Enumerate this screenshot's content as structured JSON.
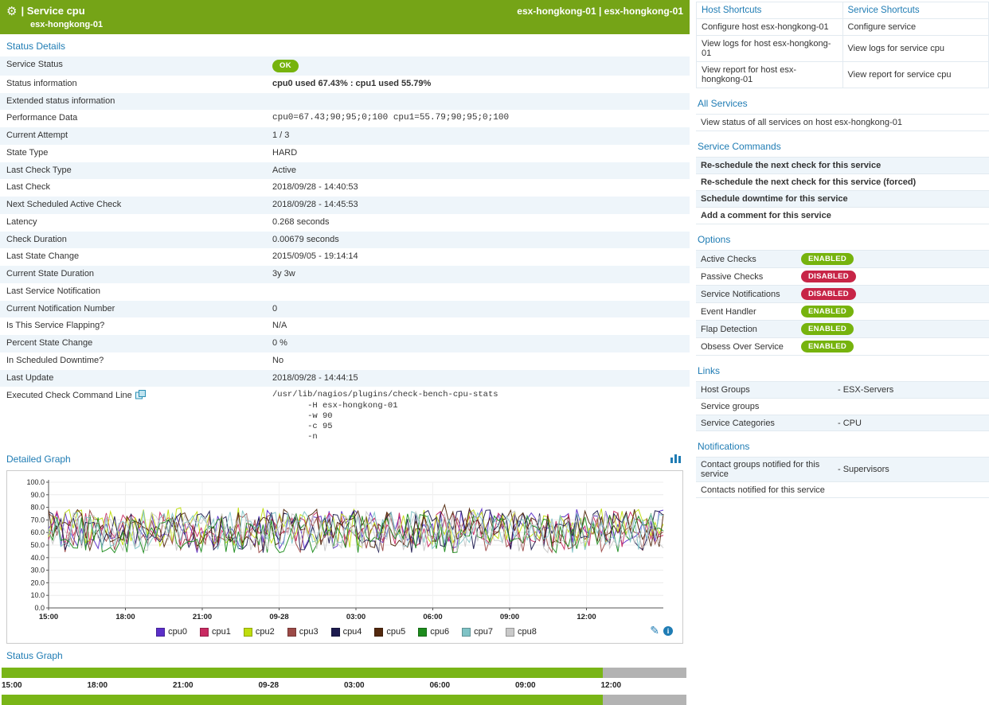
{
  "colors": {
    "header_green": "#75a417",
    "heading_blue": "#1f7cb4",
    "enabled_green": "#76b30d",
    "disabled_red": "#c72547",
    "stripe_blue": "#eef5fa",
    "status_bar_green": "#79b517",
    "status_bar_gray": "#b3b3b3"
  },
  "header": {
    "gear_icon": "gear",
    "title": "| Service cpu",
    "subtitle": "esx-hongkong-01",
    "host_links": "esx-hongkong-01 | esx-hongkong-01"
  },
  "status_details": {
    "heading": "Status Details",
    "rows": [
      {
        "label": "Service Status",
        "value": "OK",
        "type": "badge"
      },
      {
        "label": "Status information",
        "value": "cpu0 used 67.43% : cpu1 used 55.79%",
        "type": "bold"
      },
      {
        "label": "Extended status information",
        "value": "",
        "type": "text"
      },
      {
        "label": "Performance Data",
        "value": "cpu0=67.43;90;95;0;100 cpu1=55.79;90;95;0;100",
        "type": "code"
      },
      {
        "label": "Current Attempt",
        "value": "1 / 3",
        "type": "text"
      },
      {
        "label": "State Type",
        "value": "HARD",
        "type": "text"
      },
      {
        "label": "Last Check Type",
        "value": "Active",
        "type": "text"
      },
      {
        "label": "Last Check",
        "value": "2018/09/28 - 14:40:53",
        "type": "text"
      },
      {
        "label": "Next Scheduled Active Check",
        "value": "2018/09/28 - 14:45:53",
        "type": "text"
      },
      {
        "label": "Latency",
        "value": "0.268 seconds",
        "type": "text"
      },
      {
        "label": "Check Duration",
        "value": "0.00679 seconds",
        "type": "text"
      },
      {
        "label": "Last State Change",
        "value": "2015/09/05 - 19:14:14",
        "type": "text"
      },
      {
        "label": "Current State Duration",
        "value": "3y 3w",
        "type": "text"
      },
      {
        "label": "Last Service Notification",
        "value": "",
        "type": "text"
      },
      {
        "label": "Current Notification Number",
        "value": "0",
        "type": "text"
      },
      {
        "label": "Is This Service Flapping?",
        "value": "N/A",
        "type": "text"
      },
      {
        "label": "Percent State Change",
        "value": "0 %",
        "type": "text"
      },
      {
        "label": "In Scheduled Downtime?",
        "value": "No",
        "type": "text"
      },
      {
        "label": "Last Update",
        "value": "2018/09/28 - 14:44:15",
        "type": "text"
      },
      {
        "label": "Executed Check Command Line",
        "value": "/usr/lib/nagios/plugins/check-bench-cpu-stats\n       -H esx-hongkong-01\n       -w 90\n       -c 95\n       -n",
        "type": "pre",
        "icon": "command-expand-icon"
      }
    ]
  },
  "detailed_graph": {
    "heading": "Detailed Graph"
  },
  "chart_data": {
    "type": "line",
    "title": "Detailed Graph",
    "ylim": [
      0,
      100
    ],
    "yticks": [
      "100.0",
      "90.0",
      "80.0",
      "70.0",
      "60.0",
      "50.0",
      "40.0",
      "30.0",
      "20.0",
      "10.0",
      "0.0"
    ],
    "xticks": [
      "15:00",
      "18:00",
      "21:00",
      "09-28",
      "03:00",
      "06:00",
      "09:00",
      "12:00"
    ],
    "grid": true,
    "legend_position": "bottom",
    "series": [
      {
        "name": "cpu0",
        "color": "#5b2fc9",
        "base": 63
      },
      {
        "name": "cpu1",
        "color": "#c92a62",
        "base": 61
      },
      {
        "name": "cpu2",
        "color": "#bfdd0e",
        "base": 64
      },
      {
        "name": "cpu3",
        "color": "#9c4a47",
        "base": 60
      },
      {
        "name": "cpu4",
        "color": "#1d1b4f",
        "base": 62
      },
      {
        "name": "cpu5",
        "color": "#53290e",
        "base": 63
      },
      {
        "name": "cpu6",
        "color": "#1d8c1d",
        "base": 59
      },
      {
        "name": "cpu7",
        "color": "#7fc3c6",
        "base": 62
      },
      {
        "name": "cpu8",
        "color": "#c9c9c9",
        "base": 61
      }
    ],
    "value_range_approx": [
      45,
      80
    ],
    "points_per_series": 150,
    "noise_amplitude": 32
  },
  "status_graph": {
    "heading": "Status Graph",
    "xticks": [
      "15:00",
      "18:00",
      "21:00",
      "09-28",
      "03:00",
      "06:00",
      "09:00",
      "12:00"
    ],
    "segments": [
      {
        "state": "ok",
        "color": "#79b517",
        "fraction": 0.878
      },
      {
        "state": "no-data",
        "color": "#b3b3b3",
        "fraction": 0.122
      }
    ]
  },
  "shortcuts": {
    "columns": [
      "Host Shortcuts",
      "Service Shortcuts"
    ],
    "rows": [
      [
        "Configure host esx-hongkong-01",
        "Configure service"
      ],
      [
        "View logs for host esx-hongkong-01",
        "View logs for service cpu"
      ],
      [
        "View report for host esx-hongkong-01",
        "View report for service cpu"
      ]
    ]
  },
  "all_services": {
    "heading": "All Services",
    "items": [
      "View status of all services on host esx-hongkong-01"
    ]
  },
  "service_commands": {
    "heading": "Service Commands",
    "items": [
      "Re-schedule the next check for this service",
      "Re-schedule the next check for this service (forced)",
      "Schedule downtime for this service",
      "Add a comment for this service"
    ]
  },
  "options": {
    "heading": "Options",
    "items": [
      {
        "label": "Active Checks",
        "state": "ENABLED"
      },
      {
        "label": "Passive Checks",
        "state": "DISABLED"
      },
      {
        "label": "Service Notifications",
        "state": "DISABLED"
      },
      {
        "label": "Event Handler",
        "state": "ENABLED"
      },
      {
        "label": "Flap Detection",
        "state": "ENABLED"
      },
      {
        "label": "Obsess Over Service",
        "state": "ENABLED"
      }
    ]
  },
  "links": {
    "heading": "Links",
    "rows": [
      {
        "label": "Host Groups",
        "value": "- ESX-Servers"
      },
      {
        "label": "Service groups",
        "value": ""
      },
      {
        "label": "Service Categories",
        "value": "- CPU"
      }
    ]
  },
  "notifications": {
    "heading": "Notifications",
    "rows": [
      {
        "label": "Contact groups notified for this service",
        "value": "- Supervisors"
      },
      {
        "label": "Contacts notified for this service",
        "value": ""
      }
    ]
  }
}
